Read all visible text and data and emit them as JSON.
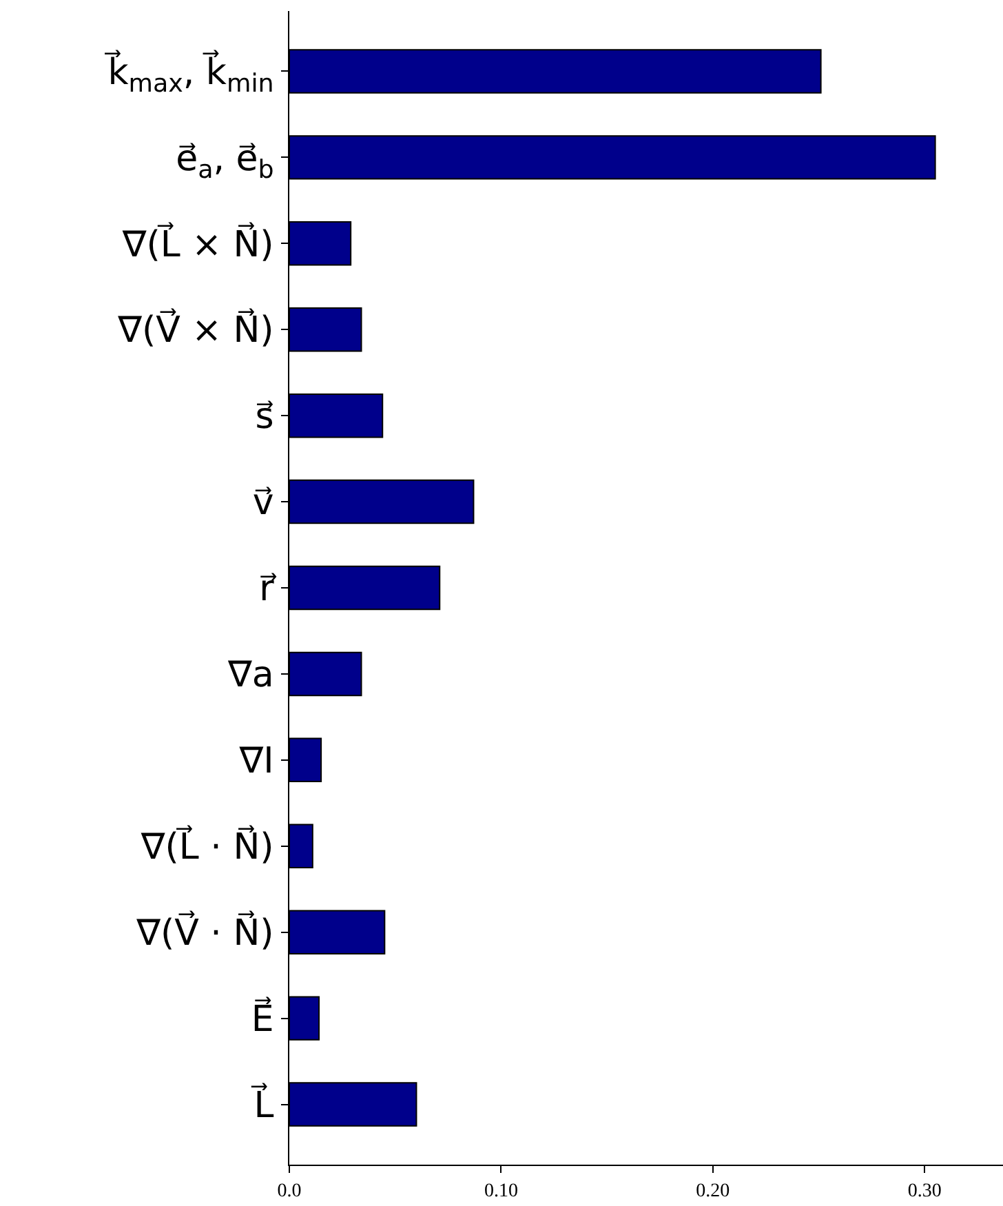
{
  "chart_data": {
    "type": "bar",
    "orientation": "horizontal",
    "categories": [
      "k⃗$_{max}$, k⃗$_{min}$",
      "e⃗$_{a}$, e⃗$_{b}$",
      "∇(L⃗ × N⃗)",
      "∇(V⃗ × N⃗)",
      "s⃗",
      "v⃗",
      "r⃗",
      "∇a",
      "∇I",
      "∇(L⃗ · N⃗)",
      "∇(V⃗ · N⃗)",
      "E⃗",
      "L⃗"
    ],
    "values": [
      0.251,
      0.305,
      0.029,
      0.034,
      0.044,
      0.087,
      0.071,
      0.034,
      0.015,
      0.011,
      0.045,
      0.014,
      0.06
    ],
    "color": "#00008b",
    "xlim": [
      0,
      0.337
    ],
    "xticks": [
      {
        "value": 0,
        "label": "0.0"
      },
      {
        "value": 0.1,
        "label": "0.10"
      },
      {
        "value": 0.2,
        "label": "0.20"
      },
      {
        "value": 0.3,
        "label": "0.30"
      }
    ],
    "legend": false
  }
}
